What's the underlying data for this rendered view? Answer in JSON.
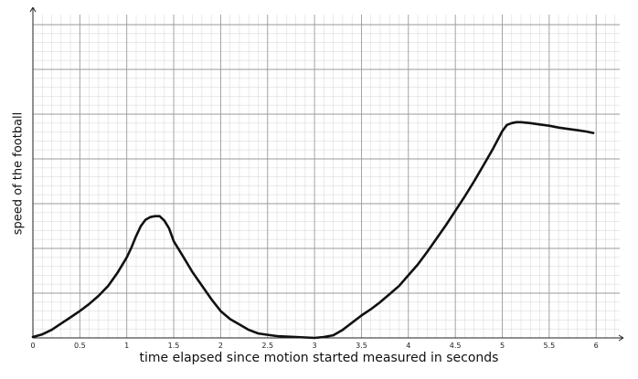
{
  "chart_data": {
    "type": "line",
    "title": "",
    "xlabel": "time elapsed since motion started measured in seconds",
    "ylabel": "speed of the football",
    "xlim": [
      0,
      6.3
    ],
    "ylim": [
      0,
      7
    ],
    "grid": true,
    "x_ticks": [
      "0",
      "0.5",
      "1",
      "1.5",
      "2",
      "2.5",
      "3",
      "3.5",
      "4",
      "4.5",
      "5",
      "5.5",
      "6"
    ],
    "series": [
      {
        "x": [
          0,
          0.1,
          0.2,
          0.3,
          0.4,
          0.5,
          0.6,
          0.7,
          0.8,
          0.9,
          1.0,
          1.05,
          1.1,
          1.15,
          1.2,
          1.25,
          1.3,
          1.35,
          1.4,
          1.45,
          1.5,
          1.6,
          1.7,
          1.8,
          1.9,
          2.0,
          2.1,
          2.2,
          2.3,
          2.4,
          2.5,
          2.6,
          2.7,
          2.8,
          2.9,
          3.0,
          3.1,
          3.2,
          3.3,
          3.4,
          3.5,
          3.6,
          3.7,
          3.8,
          3.9,
          4.0,
          4.1,
          4.2,
          4.3,
          4.4,
          4.5,
          4.6,
          4.7,
          4.8,
          4.9,
          5.0,
          5.05,
          5.1,
          5.15,
          5.2,
          5.3,
          5.4,
          5.5,
          5.6,
          5.7,
          5.8,
          5.9,
          5.97
        ],
        "y": [
          0.02,
          0.08,
          0.18,
          0.32,
          0.46,
          0.6,
          0.76,
          0.94,
          1.16,
          1.45,
          1.8,
          2.02,
          2.28,
          2.5,
          2.64,
          2.7,
          2.72,
          2.72,
          2.62,
          2.45,
          2.16,
          1.82,
          1.47,
          1.17,
          0.87,
          0.6,
          0.42,
          0.3,
          0.18,
          0.1,
          0.07,
          0.04,
          0.03,
          0.02,
          0.01,
          0.0,
          0.02,
          0.06,
          0.18,
          0.34,
          0.5,
          0.64,
          0.8,
          0.98,
          1.16,
          1.4,
          1.64,
          1.92,
          2.22,
          2.52,
          2.84,
          3.16,
          3.5,
          3.86,
          4.22,
          4.62,
          4.76,
          4.8,
          4.82,
          4.82,
          4.8,
          4.77,
          4.74,
          4.7,
          4.67,
          4.64,
          4.61,
          4.58
        ]
      }
    ]
  }
}
